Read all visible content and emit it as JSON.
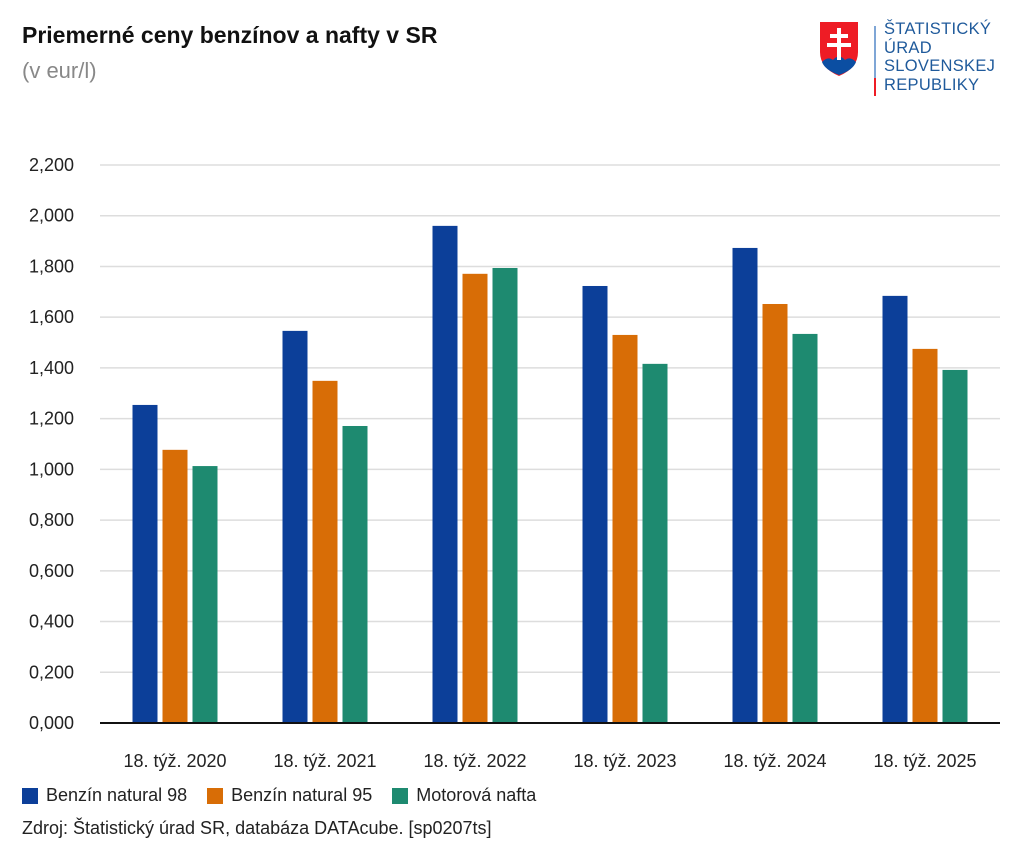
{
  "title": "Priemerné ceny benzínov a nafty v SR",
  "subtitle": "(v eur/l)",
  "logo": {
    "text": [
      "ŠTATISTICKÝ",
      "ÚRAD",
      "SLOVENSKEJ",
      "REPUBLIKY"
    ]
  },
  "source": "Zdroj: Štatistický úrad SR, databáza DATAcube. [sp0207ts]",
  "chart_data": {
    "type": "bar",
    "title": "Priemerné ceny benzínov a nafty v SR",
    "ylabel": "(v eur/l)",
    "xlabel": "",
    "ylim": [
      0,
      2.2
    ],
    "yticks": [
      "0,000",
      "0,200",
      "0,400",
      "0,600",
      "0,800",
      "1,000",
      "1,200",
      "1,400",
      "1,600",
      "1,800",
      "2,000",
      "2,200"
    ],
    "grid": true,
    "legend": "bottom-left",
    "categories": [
      "18. týž. 2020",
      "18. týž. 2021",
      "18. týž. 2022",
      "18. týž. 2023",
      "18. týž. 2024",
      "18. týž. 2025"
    ],
    "series": [
      {
        "name": "Benzín natural 98",
        "color": "#0c3f99",
        "values": [
          1.254,
          1.546,
          1.96,
          1.723,
          1.873,
          1.684
        ]
      },
      {
        "name": "Benzín natural 95",
        "color": "#d86d06",
        "values": [
          1.077,
          1.349,
          1.771,
          1.53,
          1.652,
          1.475
        ]
      },
      {
        "name": "Motorová nafta",
        "color": "#1e8a70",
        "values": [
          1.013,
          1.171,
          1.794,
          1.416,
          1.534,
          1.392
        ]
      }
    ]
  }
}
